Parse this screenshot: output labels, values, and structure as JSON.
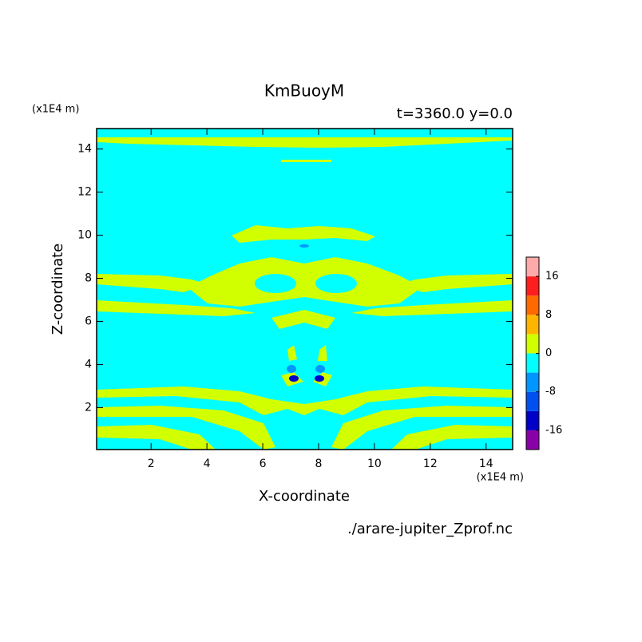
{
  "chart_data": {
    "type": "contour",
    "title": "KmBuoyM",
    "subtitle": "t=3360.0 y=0.0",
    "x_label": "X-coordinate",
    "y_label": "Z-coordinate",
    "x_unit": "(x1E4 m)",
    "y_unit": "(x1E4 m)",
    "source": "./arare-jupiter_Zprof.nc",
    "xlim": [
      0.05,
      14.95
    ],
    "ylim": [
      0.05,
      14.95
    ],
    "xticks": [
      2,
      4,
      6,
      8,
      10,
      12,
      14
    ],
    "yticks": [
      2,
      4,
      6,
      8,
      10,
      12,
      14
    ],
    "colorbar": {
      "levels": [
        -20,
        -16,
        -12,
        -8,
        -4,
        0,
        4,
        8,
        12,
        16,
        20
      ],
      "colors": [
        "#8a00a8",
        "#0000c8",
        "#0050f0",
        "#0096ff",
        "#00ffff",
        "#d2ff00",
        "#ffb400",
        "#ff6a00",
        "#ff1e1e",
        "#ffaaaa"
      ],
      "ticks": [
        -16,
        -8,
        0,
        8,
        16
      ]
    }
  }
}
